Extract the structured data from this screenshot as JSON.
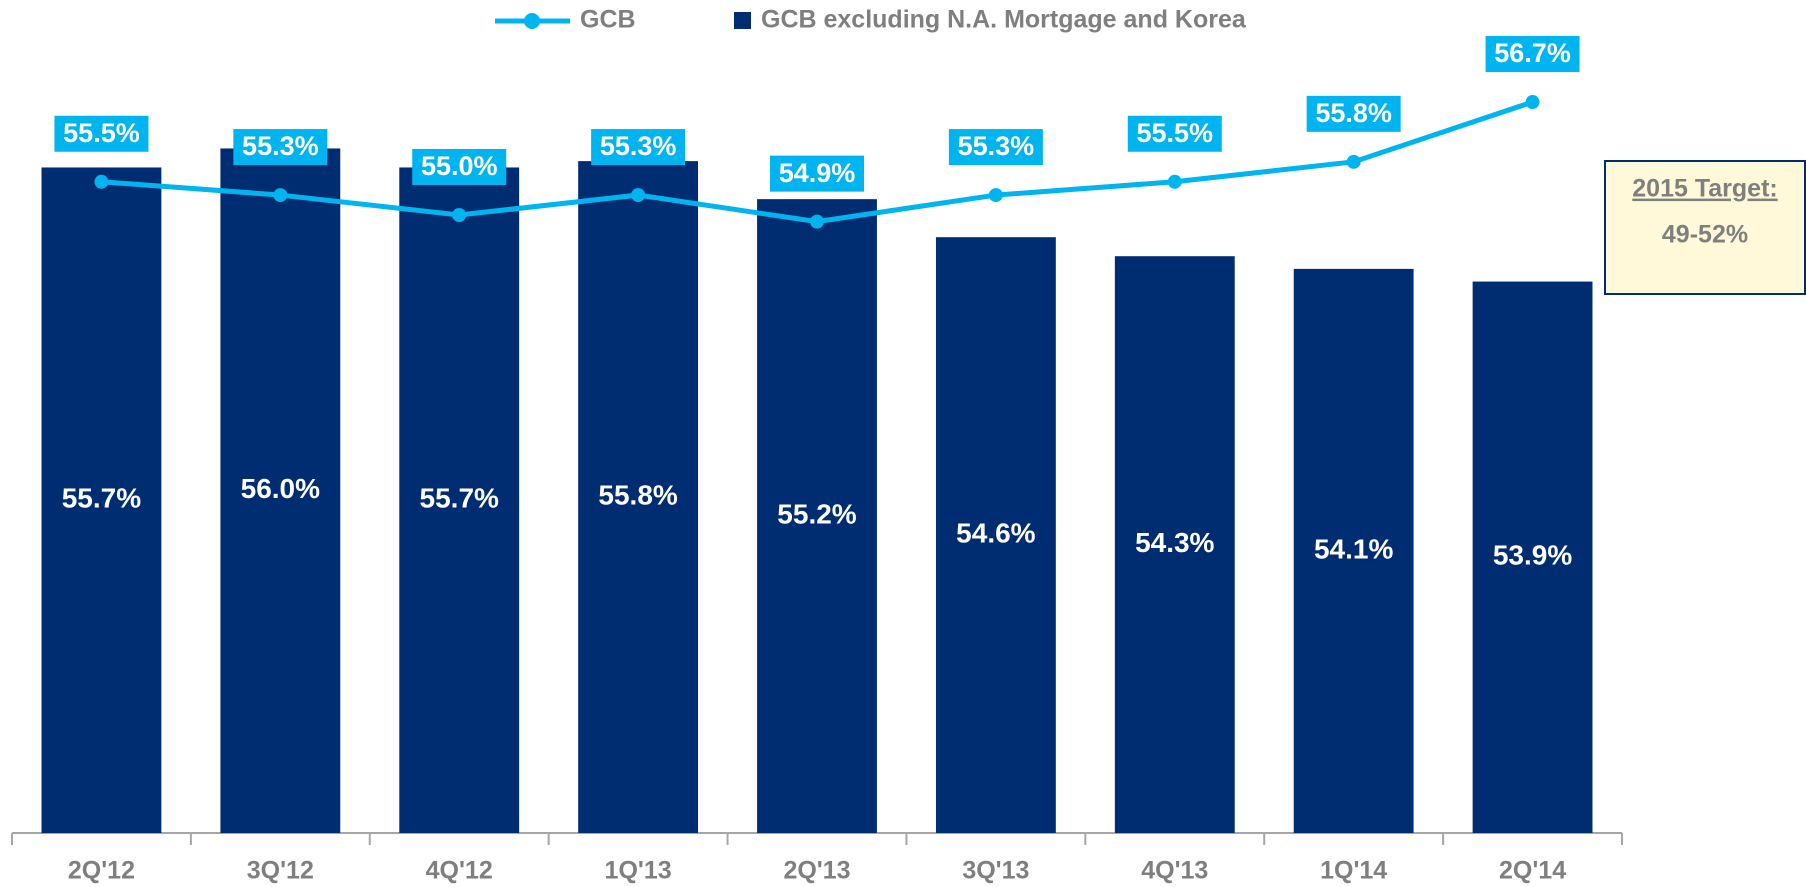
{
  "chart_data": {
    "type": "bar_line",
    "categories": [
      "2Q'12",
      "3Q'12",
      "4Q'12",
      "1Q'13",
      "2Q'13",
      "3Q'13",
      "4Q'13",
      "1Q'14",
      "2Q'14"
    ],
    "series": [
      {
        "name": "GCB",
        "type": "line",
        "axis": "y2",
        "color": "#00b5ef",
        "values": [
          55.5,
          55.3,
          55.0,
          55.3,
          54.9,
          55.3,
          55.5,
          55.8,
          56.7
        ],
        "value_labels": [
          "55.5%",
          "55.3%",
          "55.0%",
          "55.3%",
          "54.9%",
          "55.3%",
          "55.5%",
          "55.8%",
          "56.7%"
        ]
      },
      {
        "name": "GCB excluding N.A. Mortgage and Korea",
        "type": "bar",
        "color": "#002d72",
        "values": [
          55.7,
          56.0,
          55.7,
          55.8,
          55.2,
          54.6,
          54.3,
          54.1,
          53.9
        ],
        "value_labels": [
          "55.7%",
          "56.0%",
          "55.7%",
          "55.8%",
          "55.2%",
          "54.6%",
          "54.3%",
          "54.1%",
          "53.9%"
        ]
      }
    ],
    "ylim": [
      45.2,
      58.2
    ],
    "y2lim": [
      45.7,
      58.1
    ],
    "annotation": {
      "title": "2015 Target:",
      "text": "49-52%"
    }
  }
}
